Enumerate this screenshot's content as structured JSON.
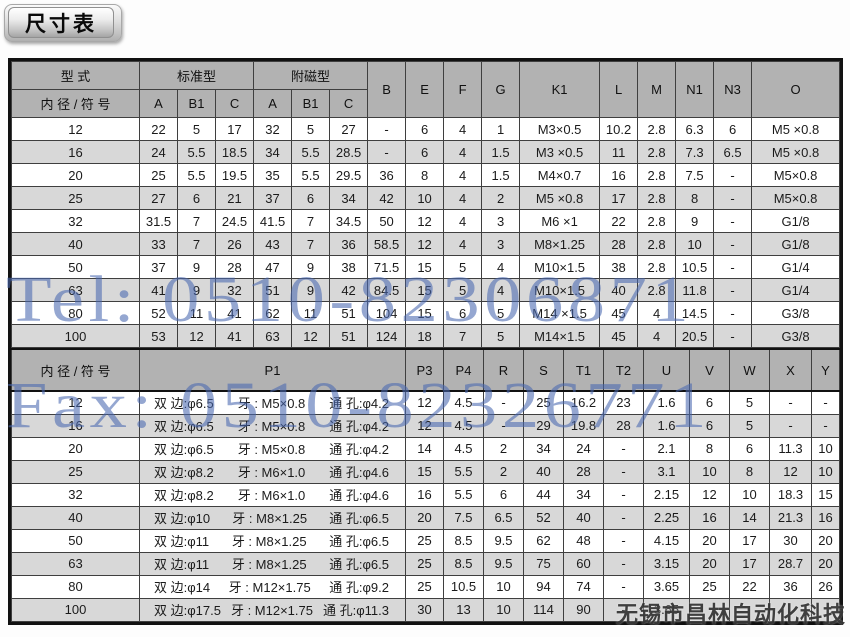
{
  "title": "尺寸表",
  "watermarks": {
    "tel": "Tel: 0510-82306871",
    "fax": "Fax: 0510-82326771",
    "company": "无锡市昌林自动化科技"
  },
  "colors": {
    "header_bg": "#b2b2b2",
    "row_alt_bg": "#d8d8d8",
    "watermark_blue": "#4868b0",
    "border_dark": "#111111"
  },
  "table1": {
    "header": {
      "col_type": "型 式",
      "col_bore": "内 径 / 符 号",
      "group_standard": "标准型",
      "group_magnetic": "附磁型",
      "sub_cols": [
        "A",
        "B1",
        "C",
        "A",
        "B1",
        "C"
      ],
      "single_cols": [
        "B",
        "E",
        "F",
        "G",
        "K1",
        "L",
        "M",
        "N1",
        "N3",
        "O"
      ]
    },
    "rows": [
      {
        "bore": "12",
        "cells": [
          "22",
          "5",
          "17",
          "32",
          "5",
          "27",
          "-",
          "6",
          "4",
          "1",
          "M3×0.5",
          "10.2",
          "2.8",
          "6.3",
          "6",
          "M5 ×0.8"
        ]
      },
      {
        "bore": "16",
        "cells": [
          "24",
          "5.5",
          "18.5",
          "34",
          "5.5",
          "28.5",
          "-",
          "6",
          "4",
          "1.5",
          "M3 ×0.5",
          "11",
          "2.8",
          "7.3",
          "6.5",
          "M5 ×0.8"
        ]
      },
      {
        "bore": "20",
        "cells": [
          "25",
          "5.5",
          "19.5",
          "35",
          "5.5",
          "29.5",
          "36",
          "8",
          "4",
          "1.5",
          "M4×0.7",
          "16",
          "2.8",
          "7.5",
          "-",
          "M5×0.8"
        ]
      },
      {
        "bore": "25",
        "cells": [
          "27",
          "6",
          "21",
          "37",
          "6",
          "34",
          "42",
          "10",
          "4",
          "2",
          "M5 ×0.8",
          "17",
          "2.8",
          "8",
          "-",
          "M5×0.8"
        ]
      },
      {
        "bore": "32",
        "cells": [
          "31.5",
          "7",
          "24.5",
          "41.5",
          "7",
          "34.5",
          "50",
          "12",
          "4",
          "3",
          "M6 ×1",
          "22",
          "2.8",
          "9",
          "-",
          "G1/8"
        ]
      },
      {
        "bore": "40",
        "cells": [
          "33",
          "7",
          "26",
          "43",
          "7",
          "36",
          "58.5",
          "12",
          "4",
          "3",
          "M8×1.25",
          "28",
          "2.8",
          "10",
          "-",
          "G1/8"
        ]
      },
      {
        "bore": "50",
        "cells": [
          "37",
          "9",
          "28",
          "47",
          "9",
          "38",
          "71.5",
          "15",
          "5",
          "4",
          "M10×1.5",
          "38",
          "2.8",
          "10.5",
          "-",
          "G1/4"
        ]
      },
      {
        "bore": "63",
        "cells": [
          "41",
          "9",
          "32",
          "51",
          "9",
          "42",
          "84.5",
          "15",
          "5",
          "4",
          "M10×1.5",
          "40",
          "2.8",
          "11.8",
          "-",
          "G1/4"
        ]
      },
      {
        "bore": "80",
        "cells": [
          "52",
          "11",
          "41",
          "62",
          "11",
          "51",
          "104",
          "15",
          "6",
          "5",
          "M14 ×1.5",
          "45",
          "4",
          "14.5",
          "-",
          "G3/8"
        ]
      },
      {
        "bore": "100",
        "cells": [
          "53",
          "12",
          "41",
          "63",
          "12",
          "51",
          "124",
          "18",
          "7",
          "5",
          "M14×1.5",
          "45",
          "4",
          "20.5",
          "-",
          "G3/8"
        ]
      }
    ]
  },
  "table2": {
    "header": {
      "col_bore": "内 径 / 符 号",
      "p1": "P1",
      "cols": [
        "P3",
        "P4",
        "R",
        "S",
        "T1",
        "T2",
        "U",
        "V",
        "W",
        "X",
        "Y"
      ]
    },
    "rows": [
      {
        "bore": "12",
        "p1": {
          "side": "双 边:φ6.5",
          "thread": "牙 : M5×0.8",
          "hole": "通 孔:φ4.2"
        },
        "cells": [
          "12",
          "4.5",
          "-",
          "25",
          "16.2",
          "23",
          "1.6",
          "6",
          "5",
          "-",
          "-"
        ]
      },
      {
        "bore": "16",
        "p1": {
          "side": "双 边:φ6.5",
          "thread": "牙 : M5×0.8",
          "hole": "通 孔:φ4.2"
        },
        "cells": [
          "12",
          "4.5",
          "-",
          "29",
          "19.8",
          "28",
          "1.6",
          "6",
          "5",
          "-",
          "-"
        ]
      },
      {
        "bore": "20",
        "p1": {
          "side": "双 边:φ6.5",
          "thread": "牙 : M5×0.8",
          "hole": "通 孔:φ4.2"
        },
        "cells": [
          "14",
          "4.5",
          "2",
          "34",
          "24",
          "-",
          "2.1",
          "8",
          "6",
          "11.3",
          "10"
        ]
      },
      {
        "bore": "25",
        "p1": {
          "side": "双 边:φ8.2",
          "thread": "牙 : M6×1.0",
          "hole": "通 孔:φ4.6"
        },
        "cells": [
          "15",
          "5.5",
          "2",
          "40",
          "28",
          "-",
          "3.1",
          "10",
          "8",
          "12",
          "10"
        ]
      },
      {
        "bore": "32",
        "p1": {
          "side": "双 边:φ8.2",
          "thread": "牙 : M6×1.0",
          "hole": "通 孔:φ4.6"
        },
        "cells": [
          "16",
          "5.5",
          "6",
          "44",
          "34",
          "-",
          "2.15",
          "12",
          "10",
          "18.3",
          "15"
        ]
      },
      {
        "bore": "40",
        "p1": {
          "side": "双 边:φ10",
          "thread": "牙 : M8×1.25",
          "hole": "通 孔:φ6.5"
        },
        "cells": [
          "20",
          "7.5",
          "6.5",
          "52",
          "40",
          "-",
          "2.25",
          "16",
          "14",
          "21.3",
          "16"
        ]
      },
      {
        "bore": "50",
        "p1": {
          "side": "双 边:φ11",
          "thread": "牙 : M8×1.25",
          "hole": "通 孔:φ6.5"
        },
        "cells": [
          "25",
          "8.5",
          "9.5",
          "62",
          "48",
          "-",
          "4.15",
          "20",
          "17",
          "30",
          "20"
        ]
      },
      {
        "bore": "63",
        "p1": {
          "side": "双 边:φ11",
          "thread": "牙 : M8×1.25",
          "hole": "通 孔:φ6.5"
        },
        "cells": [
          "25",
          "8.5",
          "9.5",
          "75",
          "60",
          "-",
          "3.15",
          "20",
          "17",
          "28.7",
          "20"
        ]
      },
      {
        "bore": "80",
        "p1": {
          "side": "双 边:φ14",
          "thread": "牙 : M12×1.75",
          "hole": "通 孔:φ9.2"
        },
        "cells": [
          "25",
          "10.5",
          "10",
          "94",
          "74",
          "-",
          "3.65",
          "25",
          "22",
          "36",
          "26"
        ]
      },
      {
        "bore": "100",
        "p1": {
          "side": "双 边:φ17.5",
          "thread": "牙 : M12×1.75",
          "hole": "通 孔:φ11.3"
        },
        "cells": [
          "30",
          "13",
          "10",
          "114",
          "90",
          "-",
          "3.65",
          "",
          "",
          "",
          ""
        ]
      }
    ]
  }
}
